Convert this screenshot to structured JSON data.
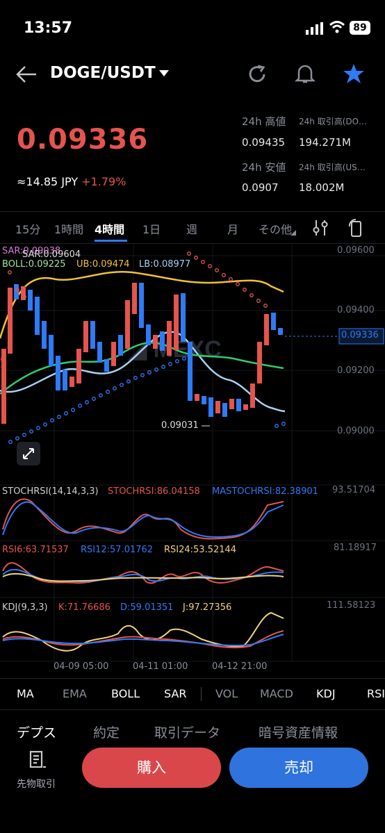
{
  "status": {
    "time": "13:57",
    "battery": "89"
  },
  "header": {
    "pair": "DOGE/USDT"
  },
  "ticker": {
    "price": "0.09336",
    "jpy": "≈14.85",
    "jpy_unit": "JPY",
    "change": "+1.79%",
    "high_label": "24h 高値",
    "high": "0.09435",
    "low_label": "24h 安値",
    "low": "0.0907",
    "vol_base_label": "24h 取引高(DO…",
    "vol_base": "194.271M",
    "vol_quote_label": "24h 取引高(US…",
    "vol_quote": "18.002M"
  },
  "intervals": [
    "15分",
    "1時間",
    "4時間",
    "1日",
    "週",
    "月",
    "その他"
  ],
  "main_chart": {
    "sar": "SAR:0.09604",
    "sar_overlap": "SAR:0.09038",
    "boll": "BOLL:0.09225",
    "ub": "UB:0.09474",
    "lb": "LB:0.08977",
    "axis": [
      "0.09600",
      "0.09400",
      "0.09200",
      "0.09000"
    ],
    "current_price": "0.09336",
    "low_marker": "0.09031"
  },
  "stochrsi": {
    "label": "STOCHRSI(14,14,3,3)",
    "k": "STOCHRSI:86.04158",
    "d": "MASTOCHRSI:82.38901",
    "axis": "93.51704"
  },
  "rsi": {
    "rsi6": "RSI6:63.71537",
    "rsi12": "RSI12:57.01762",
    "rsi24": "RSI24:53.52144",
    "axis": "81.18917"
  },
  "kdj": {
    "label": "KDJ(9,3,3)",
    "k": "K:71.76686",
    "d": "D:59.01351",
    "j": "J:97.27356",
    "axis": "111.58123"
  },
  "time_axis": [
    "04-09 05:00",
    "04-11 01:00",
    "04-12 21:00"
  ],
  "indicators": [
    "MA",
    "EMA",
    "BOLL",
    "SAR",
    "VOL",
    "MACD",
    "KDJ",
    "RSI"
  ],
  "bottom_tabs": [
    "デプス",
    "約定",
    "取引データ",
    "暗号資産情報"
  ],
  "footer": {
    "futures": "先物取引",
    "buy": "購入",
    "sell": "売却"
  },
  "colors": {
    "up": "#e5544e",
    "down": "#2f7bf6",
    "accent": "#2f7bf6",
    "boll_mid": "#2ecc71",
    "boll_up": "#f1c232",
    "boll_low": "#a8d2f5"
  }
}
